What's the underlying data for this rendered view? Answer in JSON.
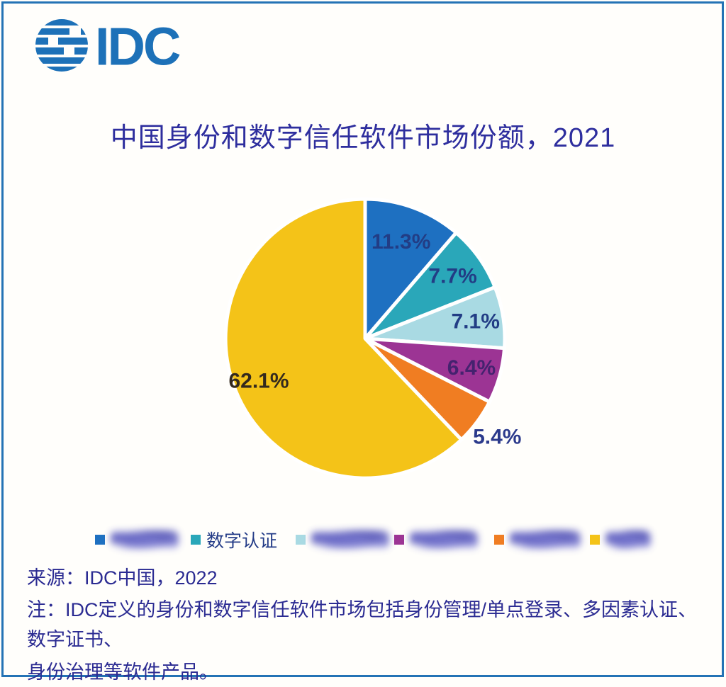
{
  "brand": {
    "logo_text": "IDC",
    "logo_color": "#1d71b8"
  },
  "title": "中国身份和数字信任软件市场份额，2021",
  "chart_data": {
    "type": "pie",
    "title": "中国身份和数字信任软件市场份额，2021",
    "start_angle_deg": 0,
    "direction": "clockwise",
    "legend_position": "bottom",
    "slices": [
      {
        "name": "",
        "censored": true,
        "value": 11.3,
        "pct_label": "11.3%",
        "color": "#1e70c1",
        "label_color": "#223d85",
        "label_r": 0.74,
        "label_inside": true
      },
      {
        "name": "数字认证",
        "censored": false,
        "value": 7.7,
        "pct_label": "7.7%",
        "color": "#2aa7b9",
        "label_color": "#223d85",
        "label_r": 0.77,
        "label_inside": true
      },
      {
        "name": "",
        "censored": true,
        "value": 7.1,
        "pct_label": "7.1%",
        "color": "#a9dae3",
        "label_color": "#223d85",
        "label_r": 0.8,
        "label_inside": true
      },
      {
        "name": "",
        "censored": true,
        "value": 6.4,
        "pct_label": "6.4%",
        "color": "#9c3494",
        "label_color": "#45226f",
        "label_r": 0.79,
        "label_inside": true
      },
      {
        "name": "",
        "censored": true,
        "value": 5.4,
        "pct_label": "5.4%",
        "color": "#f07d22",
        "label_color": "#2b3a8c",
        "label_r": 1.18,
        "label_inside": false
      },
      {
        "name": "",
        "censored": true,
        "value": 62.1,
        "pct_label": "62.1%",
        "color": "#f4c318",
        "label_color": "#33291e",
        "label_r": 0.82,
        "label_inside": true
      }
    ]
  },
  "footer": {
    "source": "来源：IDC中国，2022",
    "note_line1": "注：IDC定义的身份和数字信任软件市场包括身份管理/单点登录、多因素认证、数字证书、",
    "note_line2": "身份治理等软件产品。"
  }
}
